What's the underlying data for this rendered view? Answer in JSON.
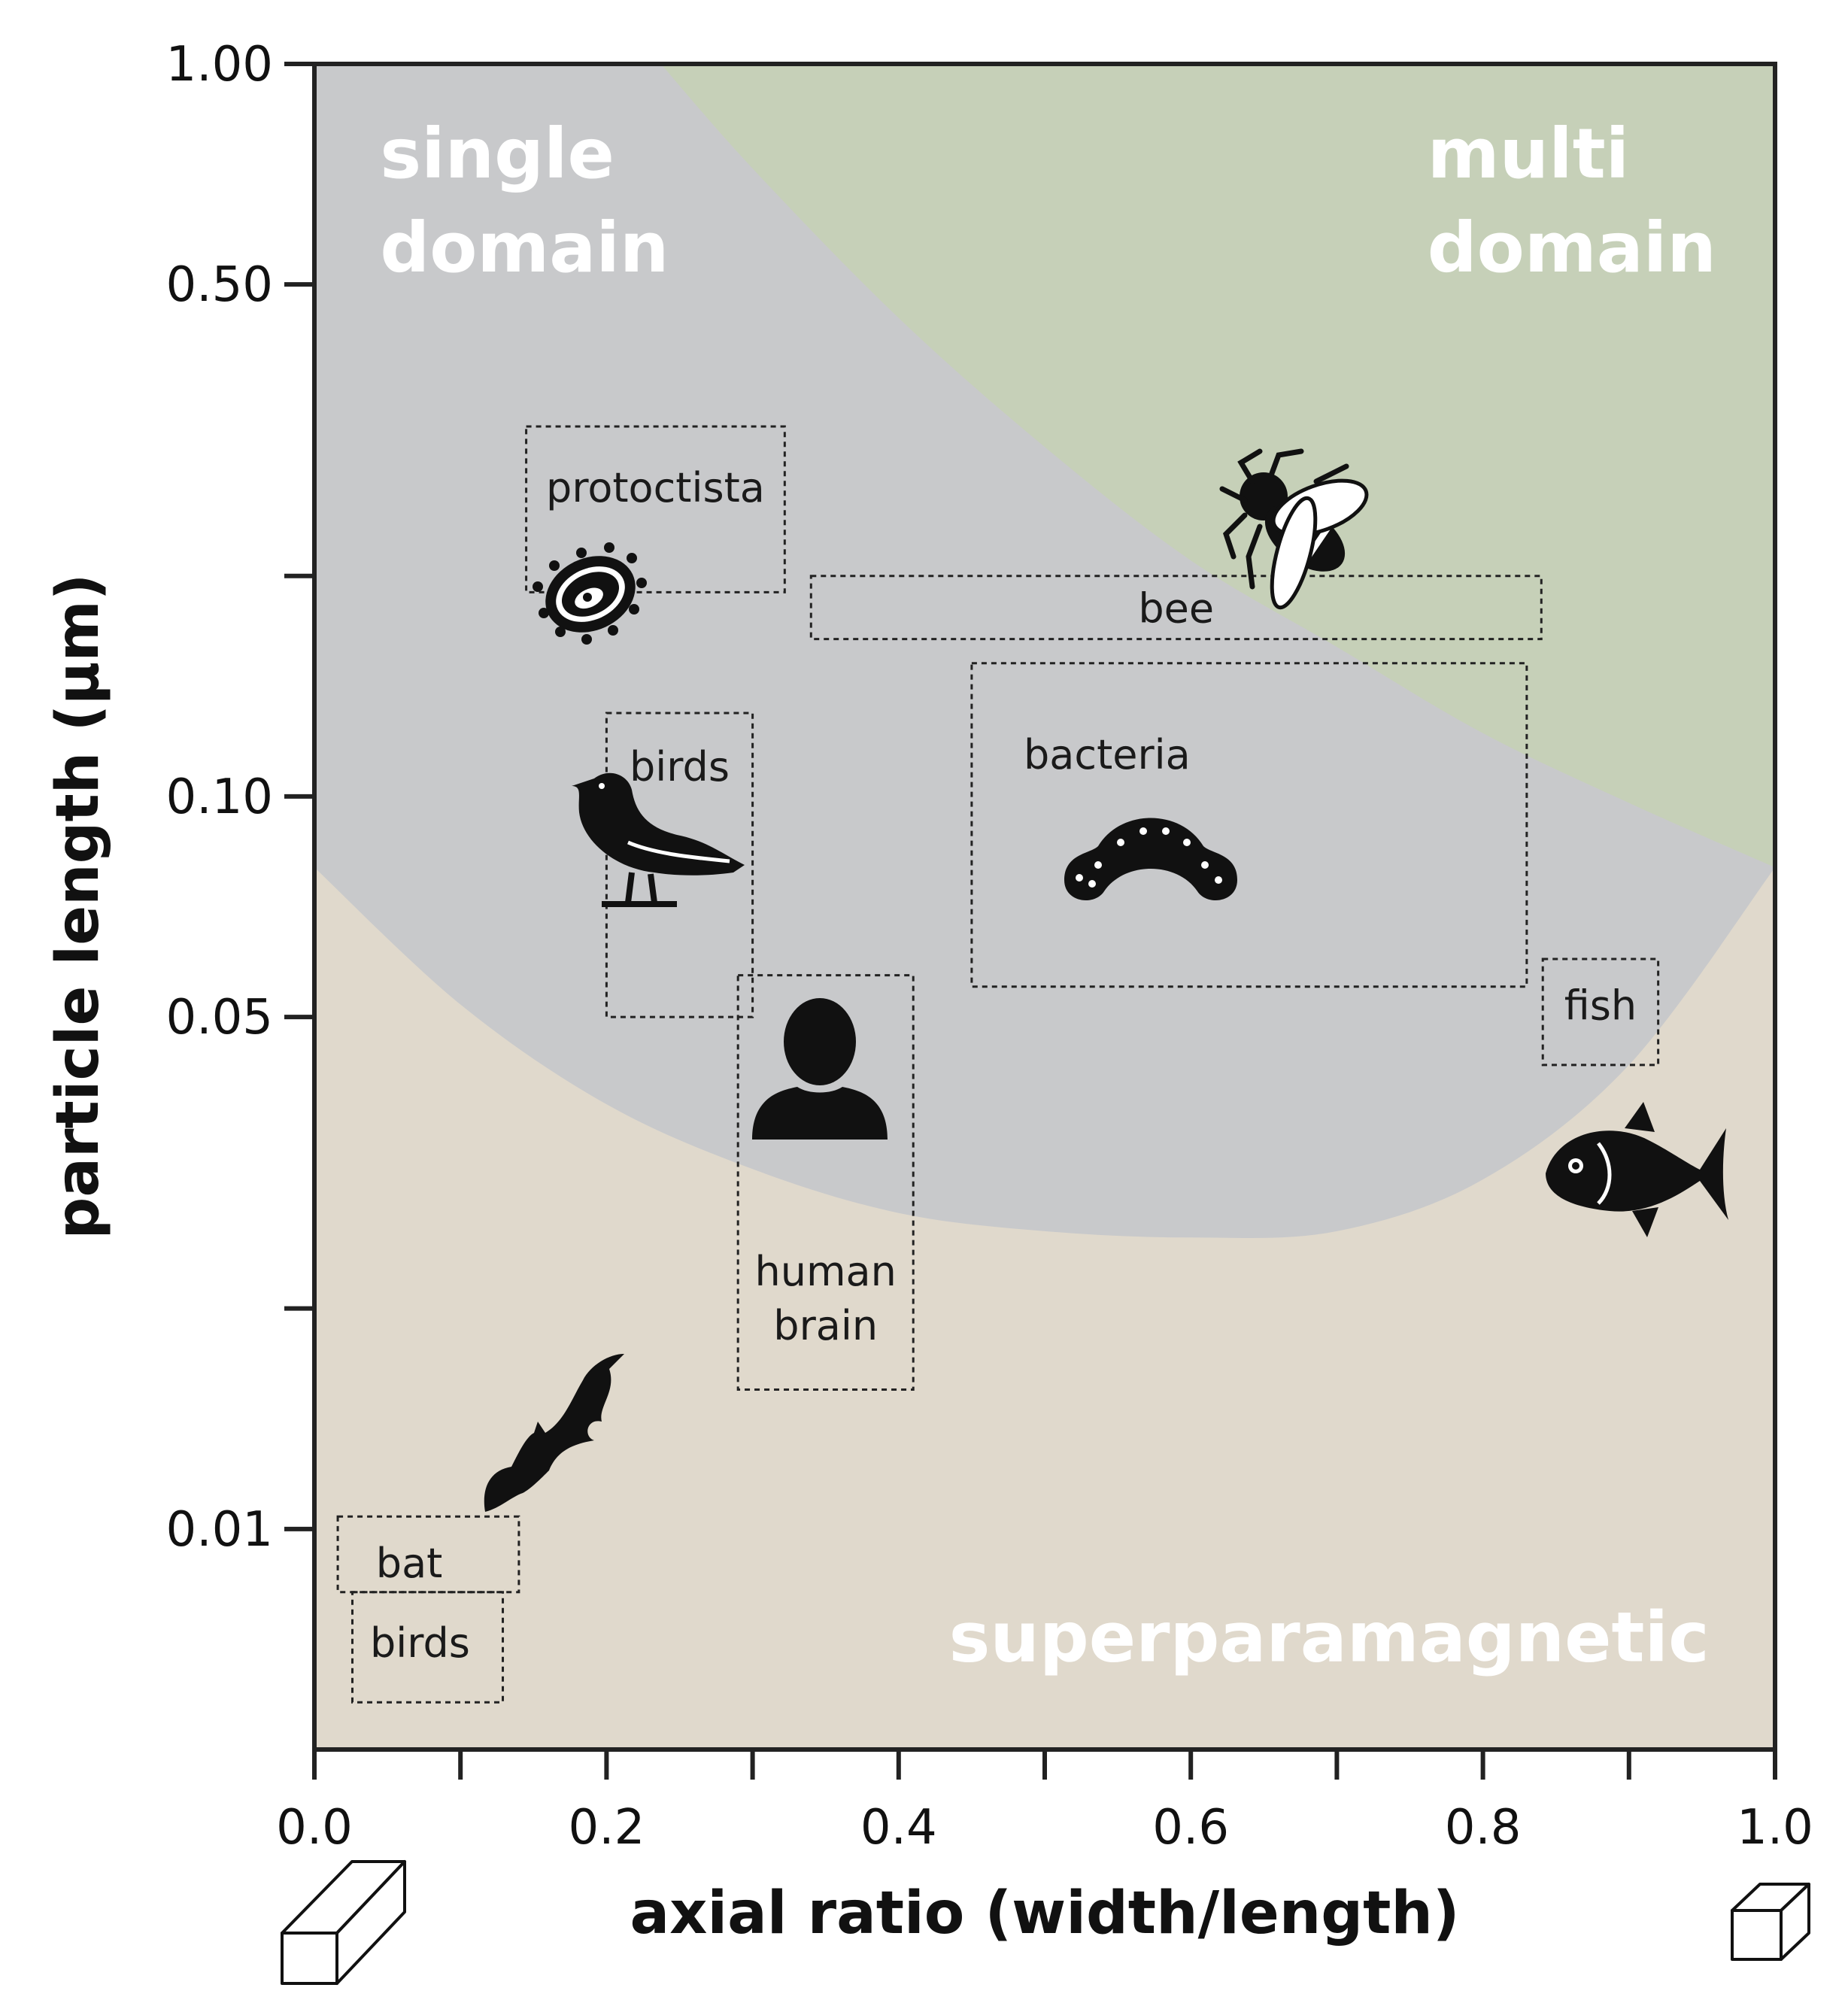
{
  "chart_data": {
    "type": "scatter",
    "xlabel": "axial ratio (width/length)",
    "ylabel": "particle length (µm)",
    "xlim": [
      0.0,
      1.0
    ],
    "ylim": [
      0.005,
      1.0
    ],
    "yscale": "log",
    "x_ticks": [
      {
        "value": 0.0,
        "label": "0.0"
      },
      {
        "value": 0.2,
        "label": "0.2"
      },
      {
        "value": 0.4,
        "label": "0.4"
      },
      {
        "value": 0.6,
        "label": "0.6"
      },
      {
        "value": 0.8,
        "label": "0.8"
      },
      {
        "value": 1.0,
        "label": "1.0"
      }
    ],
    "x_minor_ticks": [
      0.1,
      0.3,
      0.5,
      0.7,
      0.9
    ],
    "y_ticks": [
      {
        "value": 1.0,
        "label": "1.00"
      },
      {
        "value": 0.5,
        "label": "0.50"
      },
      {
        "value": 0.1,
        "label": "0.10"
      },
      {
        "value": 0.05,
        "label": "0.05"
      },
      {
        "value": 0.01,
        "label": "0.01"
      }
    ],
    "y_minor_ticks": [
      0.2,
      0.02
    ],
    "grid": false,
    "regions": [
      {
        "label": "single domain",
        "lines": [
          "single",
          "domain"
        ],
        "color": "#c8c9cb"
      },
      {
        "label": "multi domain",
        "lines": [
          "multi",
          "domain"
        ],
        "color": "#c6d0b8"
      },
      {
        "label": "superparamagnetic",
        "lines": [
          "superparamagnetic"
        ],
        "color": "#e0d9cc"
      }
    ],
    "boundaries": {
      "superparamagnetic_upper": {
        "x": [
          0.0,
          0.1,
          0.2,
          0.3,
          0.4,
          0.5,
          0.6,
          0.7,
          0.8,
          0.9,
          1.0
        ],
        "y": [
          0.08,
          0.052,
          0.038,
          0.031,
          0.027,
          0.0255,
          0.025,
          0.0255,
          0.03,
          0.043,
          0.08
        ]
      },
      "multi_domain_lower": {
        "x": [
          0.235,
          0.3,
          0.4,
          0.5,
          0.6,
          0.7,
          0.8,
          0.9,
          1.0
        ],
        "y": [
          1.0,
          0.72,
          0.45,
          0.3,
          0.21,
          0.16,
          0.122,
          0.098,
          0.08
        ]
      }
    },
    "boxes": [
      {
        "label": "protoctista",
        "icon": "protist-icon",
        "x": [
          0.145,
          0.322
        ],
        "y": [
          0.19,
          0.32
        ]
      },
      {
        "label": "bee",
        "icon": "bee-icon",
        "x": [
          0.34,
          0.84
        ],
        "y": [
          0.164,
          0.2
        ]
      },
      {
        "label": "bacteria",
        "icon": "bacteria-icon",
        "x": [
          0.45,
          0.83
        ],
        "y": [
          0.055,
          0.152
        ]
      },
      {
        "label": "birds",
        "icon": "bird-icon",
        "x": [
          0.2,
          0.3
        ],
        "y": [
          0.05,
          0.13
        ]
      },
      {
        "label": "human\nbrain",
        "lines": [
          "human",
          "brain"
        ],
        "icon": "human-icon",
        "x": [
          0.29,
          0.41
        ],
        "y": [
          0.0155,
          0.057
        ]
      },
      {
        "label": "fish",
        "icon": "fish-icon",
        "x": [
          0.841,
          0.92
        ],
        "y": [
          0.043,
          0.06
        ]
      },
      {
        "label": "bat",
        "icon": "bat-icon",
        "x": [
          0.016,
          0.14
        ],
        "y": [
          0.0082,
          0.0104
        ]
      },
      {
        "label": "birds",
        "icon": null,
        "x": [
          0.026,
          0.129
        ],
        "y": [
          0.0058,
          0.0082
        ]
      }
    ],
    "icons": {
      "cube_elongated": "elongated-prism-icon",
      "cube": "cube-icon"
    }
  }
}
